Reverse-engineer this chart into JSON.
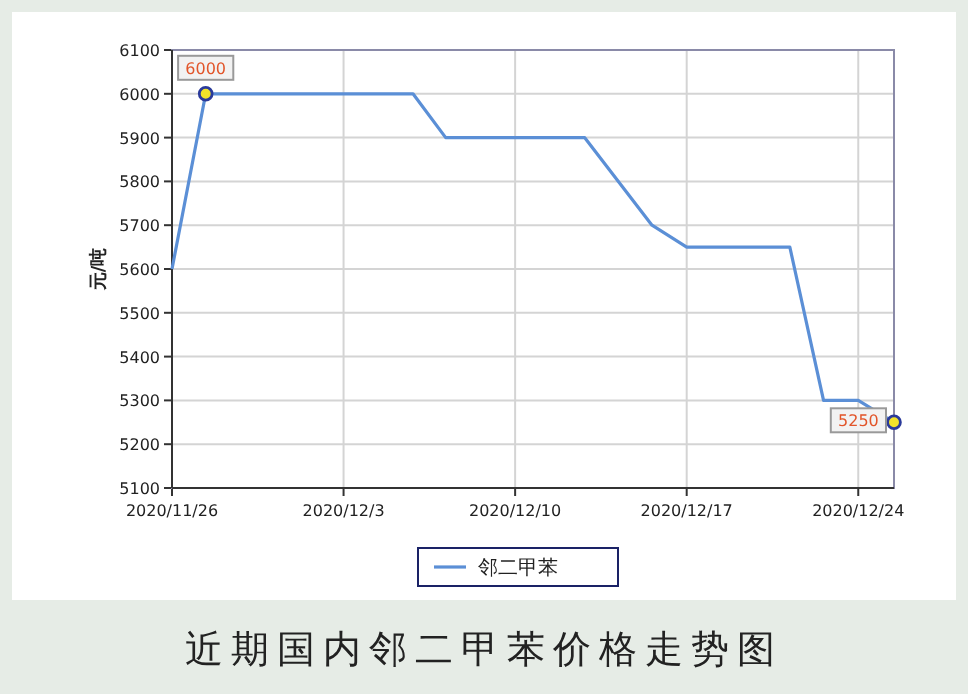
{
  "chart_data": {
    "type": "line",
    "title": "近期国内邻二甲苯价格走势图",
    "ylabel": "元/吨",
    "x": [
      "2020-11-26",
      "2020-11-27T09:00",
      "2020-12-05T20:00",
      "2020-12-07T04:00",
      "2020-12-12T20:00",
      "2020-12-15T14:00",
      "2020-12-17",
      "2020-12-21T05:00",
      "2020-12-22T14:00",
      "2020-12-24",
      "2020-12-25T11:00"
    ],
    "series": [
      {
        "name": "邻二甲苯",
        "color": "#5b8fd6",
        "values": [
          5600,
          6000,
          6000,
          5900,
          5900,
          5700,
          5650,
          5650,
          5300,
          5300,
          5250
        ],
        "value_labels": [
          null,
          "6000",
          null,
          null,
          null,
          null,
          null,
          null,
          null,
          null,
          "5250"
        ]
      }
    ],
    "xlim": [
      "2020-11-26",
      "2020-12-25T11:00"
    ],
    "xticks": [
      {
        "value": "2020-11-26",
        "label": "2020/11/26"
      },
      {
        "value": "2020-12-03",
        "label": "2020/12/3"
      },
      {
        "value": "2020-12-10",
        "label": "2020/12/10"
      },
      {
        "value": "2020-12-17",
        "label": "2020/12/17"
      },
      {
        "value": "2020-12-24",
        "label": "2020/12/24"
      }
    ],
    "ylim": [
      5100,
      6100
    ],
    "yticks": [
      5100,
      5200,
      5300,
      5400,
      5500,
      5600,
      5700,
      5800,
      5900,
      6000,
      6100
    ],
    "grid": true,
    "legend": "bottom"
  }
}
